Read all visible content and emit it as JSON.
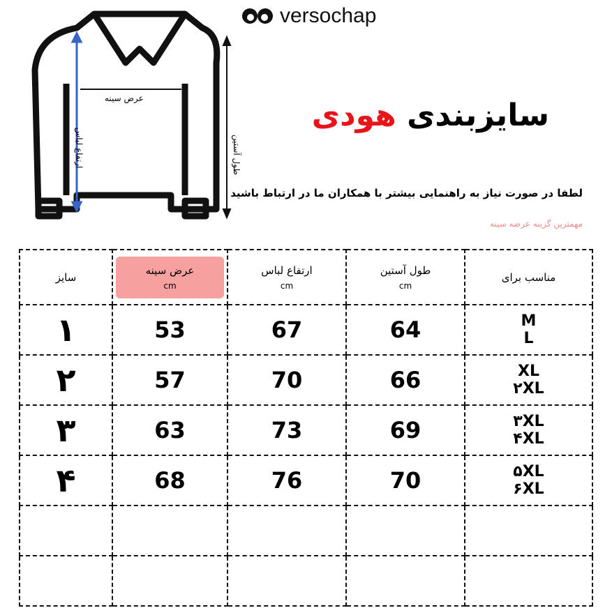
{
  "brand": {
    "name": "versochap",
    "logo_icon": "owl-eyes-icon"
  },
  "title": {
    "main": "سایزبندی",
    "accent": "هودی",
    "accent_color": "#e8141a"
  },
  "note": "لطفا در صورت نیاز به راهنمایی بیشتر با همکاران ما در ارتباط باشید",
  "highlight_note": "مهمترین گزینه عرضه سینه",
  "diagram": {
    "chest": "عرض سینه",
    "height": "ارتفاع لباس",
    "sleeve": "طول آستین"
  },
  "table": {
    "headers": [
      {
        "label": "سایز",
        "unit": ""
      },
      {
        "label": "عرض سینه",
        "unit": "cm",
        "highlight": "#f6a0a0"
      },
      {
        "label": "ارتفاع لباس",
        "unit": "cm"
      },
      {
        "label": "طول آستین",
        "unit": "cm"
      },
      {
        "label": "مناسب برای",
        "unit": ""
      }
    ],
    "rows": [
      {
        "size": "۱",
        "chest": "53",
        "height": "67",
        "sleeve": "64",
        "fit1": "M",
        "fit2": "L"
      },
      {
        "size": "۲",
        "chest": "57",
        "height": "70",
        "sleeve": "66",
        "fit1": "XL",
        "fit2": "۲XL"
      },
      {
        "size": "۳",
        "chest": "63",
        "height": "73",
        "sleeve": "69",
        "fit1": "۳XL",
        "fit2": "۴XL"
      },
      {
        "size": "۴",
        "chest": "68",
        "height": "76",
        "sleeve": "70",
        "fit1": "۵XL",
        "fit2": "۶XL"
      }
    ]
  }
}
